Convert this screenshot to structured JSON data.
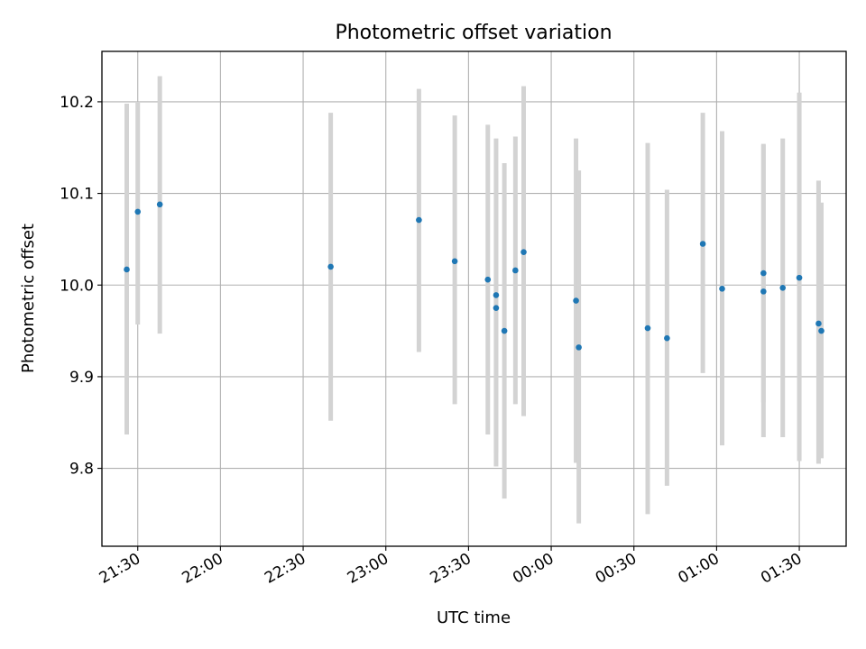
{
  "chart_data": {
    "type": "scatter",
    "title": "Photometric offset variation",
    "xlabel": "UTC time",
    "ylabel": "Photometric offset",
    "x_axis": {
      "type": "time",
      "range": [
        "21:17",
        "01:47"
      ],
      "ticks": [
        "21:30",
        "22:00",
        "22:30",
        "23:00",
        "23:30",
        "00:00",
        "00:30",
        "01:00",
        "01:30"
      ]
    },
    "y_axis": {
      "range": [
        9.715,
        10.255
      ],
      "ticks": [
        "9.8",
        "9.9",
        "10.0",
        "10.1",
        "10.2"
      ]
    },
    "grid": true,
    "error_bar_color": "#d3d3d3",
    "point_color": "#1f77b4",
    "points": [
      {
        "t": "21:26",
        "y": 10.017,
        "lo": 9.837,
        "hi": 10.198
      },
      {
        "t": "21:30",
        "y": 10.08,
        "lo": 9.957,
        "hi": 10.2
      },
      {
        "t": "21:38",
        "y": 10.088,
        "lo": 9.947,
        "hi": 10.228
      },
      {
        "t": "22:40",
        "y": 10.02,
        "lo": 9.852,
        "hi": 10.188
      },
      {
        "t": "23:12",
        "y": 10.071,
        "lo": 9.927,
        "hi": 10.214
      },
      {
        "t": "23:25",
        "y": 10.026,
        "lo": 9.87,
        "hi": 10.185
      },
      {
        "t": "23:37",
        "y": 10.006,
        "lo": 9.837,
        "hi": 10.175
      },
      {
        "t": "23:40",
        "y": 9.989,
        "lo": 9.802,
        "hi": 10.16
      },
      {
        "t": "23:40",
        "y": 9.975,
        "lo": 9.817,
        "hi": 10.125
      },
      {
        "t": "23:43",
        "y": 9.95,
        "lo": 9.767,
        "hi": 10.133
      },
      {
        "t": "23:47",
        "y": 10.016,
        "lo": 9.87,
        "hi": 10.162
      },
      {
        "t": "23:50",
        "y": 10.036,
        "lo": 9.857,
        "hi": 10.217
      },
      {
        "t": "00:09",
        "y": 9.983,
        "lo": 9.806,
        "hi": 10.16
      },
      {
        "t": "00:10",
        "y": 9.932,
        "lo": 9.74,
        "hi": 10.125
      },
      {
        "t": "00:35",
        "y": 9.953,
        "lo": 9.75,
        "hi": 10.155
      },
      {
        "t": "00:42",
        "y": 9.942,
        "lo": 9.781,
        "hi": 10.104
      },
      {
        "t": "00:55",
        "y": 10.045,
        "lo": 9.904,
        "hi": 10.188
      },
      {
        "t": "01:02",
        "y": 9.996,
        "lo": 9.825,
        "hi": 10.168
      },
      {
        "t": "01:17",
        "y": 10.013,
        "lo": 9.872,
        "hi": 10.154
      },
      {
        "t": "01:17",
        "y": 9.993,
        "lo": 9.834,
        "hi": 10.153
      },
      {
        "t": "01:24",
        "y": 9.997,
        "lo": 9.834,
        "hi": 10.16
      },
      {
        "t": "01:30",
        "y": 10.008,
        "lo": 9.808,
        "hi": 10.21
      },
      {
        "t": "01:37",
        "y": 9.958,
        "lo": 9.805,
        "hi": 10.114
      },
      {
        "t": "01:38",
        "y": 9.95,
        "lo": 9.811,
        "hi": 10.09
      }
    ]
  }
}
